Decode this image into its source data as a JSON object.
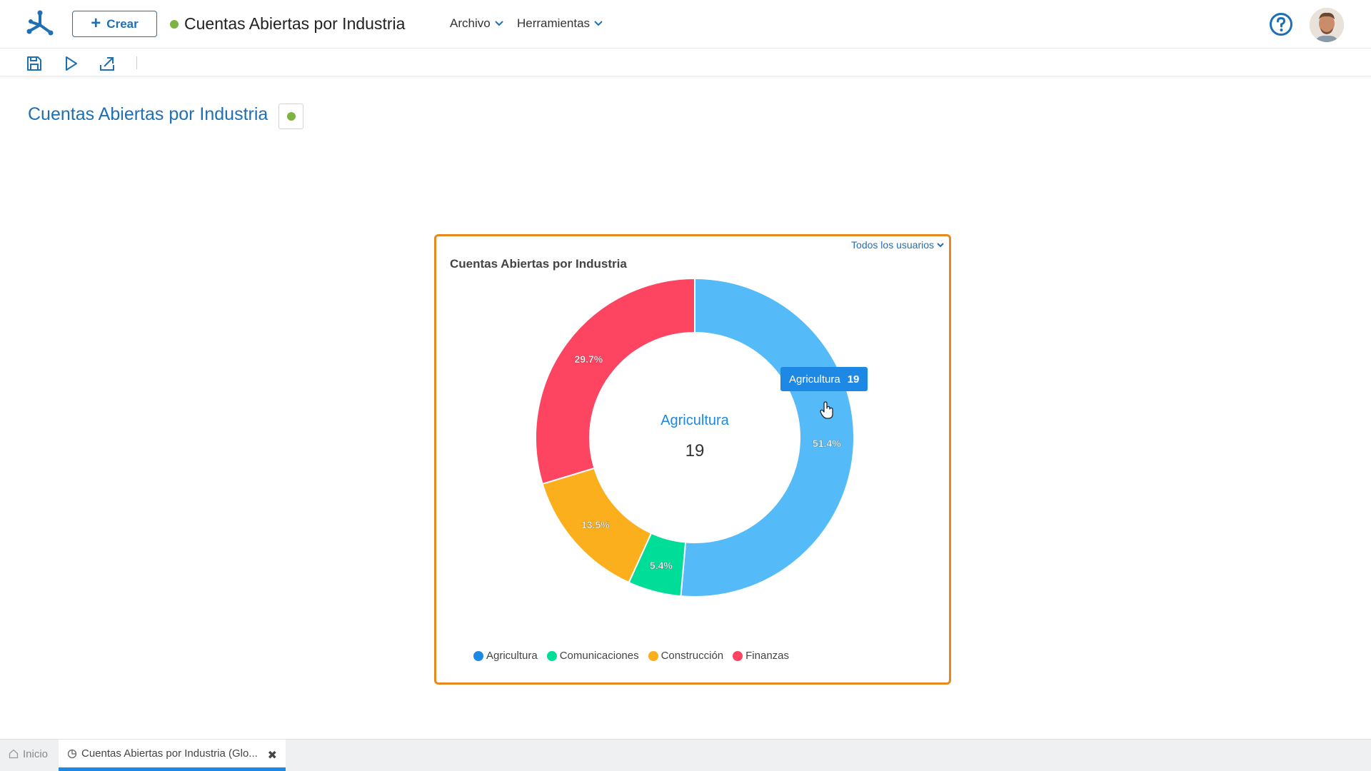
{
  "header": {
    "create_label": "Crear",
    "doc_title": "Cuentas Abiertas por Industria",
    "menus": [
      {
        "label": "Archivo"
      },
      {
        "label": "Herramientas"
      }
    ]
  },
  "page": {
    "title": "Cuentas Abiertas por Industria"
  },
  "widget": {
    "filter_label": "Todos los usuarios",
    "title": "Cuentas Abiertas por Industria",
    "center_label": "Agricultura",
    "center_value": "19",
    "tooltip": {
      "label": "Agricultura",
      "value": "19"
    }
  },
  "chart_data": {
    "type": "pie",
    "donut": true,
    "title": "Cuentas Abiertas por Industria",
    "categories": [
      "Agricultura",
      "Comunicaciones",
      "Construcción",
      "Finanzas"
    ],
    "percent_labels": [
      "51.4%",
      "5.4%",
      "13.5%",
      "29.7%"
    ],
    "values": [
      51.4,
      5.4,
      13.5,
      29.7
    ],
    "colors": [
      "#55bbf8",
      "#00dd99",
      "#fbaf1d",
      "#fd4461"
    ],
    "legend_colors": [
      "#1e88e5",
      "#00dd99",
      "#fbaf1d",
      "#fd4461"
    ],
    "legend": "bottom-left"
  },
  "bottom_tabs": {
    "home_label": "Inicio",
    "active_label": "Cuentas Abiertas por Industria (Glo..."
  }
}
